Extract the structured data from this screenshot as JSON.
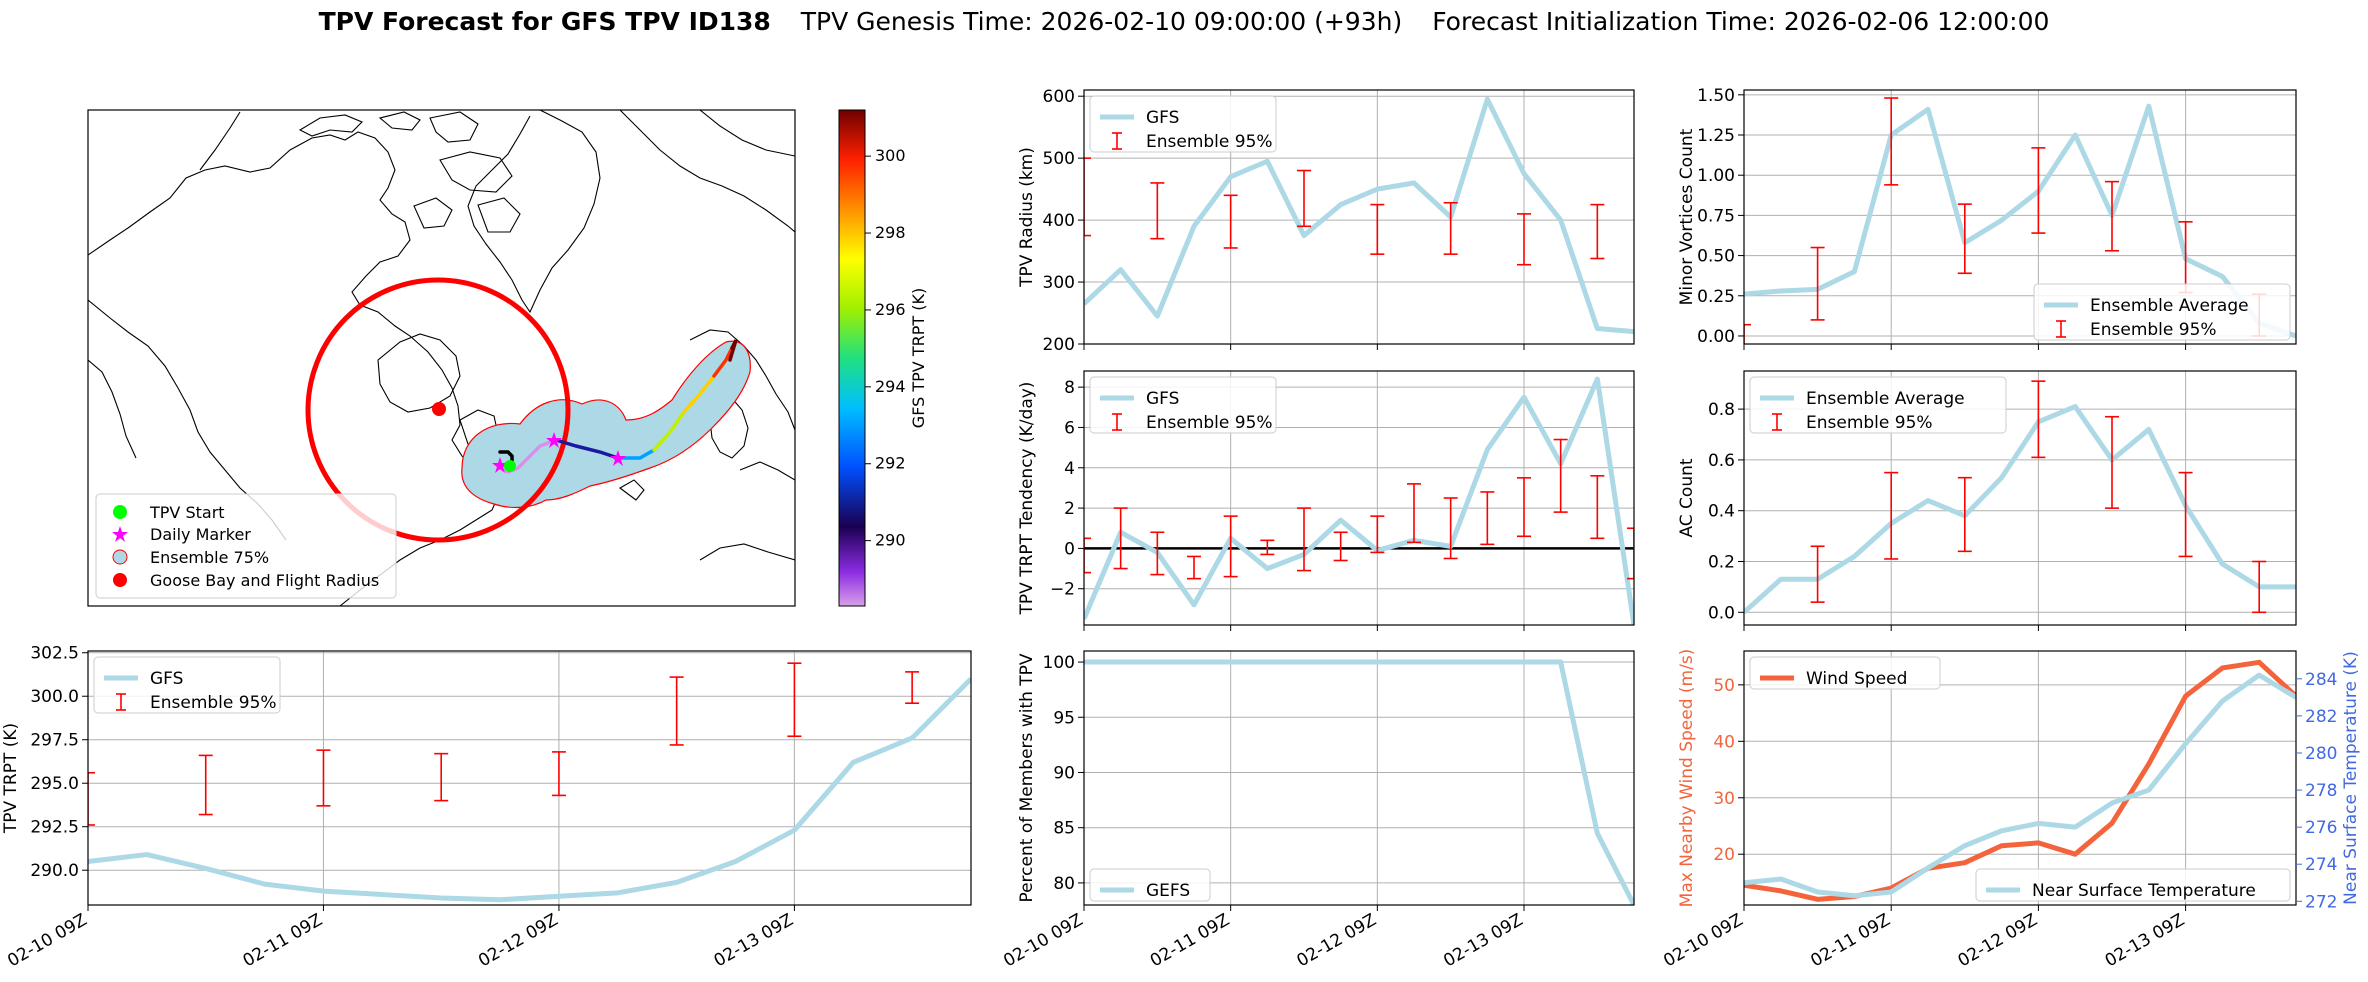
{
  "suptitle": {
    "bold": "TPV Forecast for GFS TPV ID138",
    "genesis": "TPV Genesis Time: 2026-02-10 09:00:00 (+93h)",
    "init": "Forecast Initialization Time: 2026-02-06 12:00:00"
  },
  "colors": {
    "track_gfs": "#add8e6",
    "errorbar": "#ff0000",
    "wind": "#f4643c",
    "temp_axis": "#4169e1",
    "ensemble_fill": "#add8e6",
    "marker_start": "#00ff00",
    "marker_daily": "#ff00ff",
    "marker_goose": "#ff0000"
  },
  "map": {
    "legend": [
      "TPV Start",
      "Daily Marker",
      "Ensemble 75%",
      "Goose Bay and Flight Radius"
    ],
    "colorbar": {
      "label": "GFS TPV TRPT (K)",
      "ticks": [
        "290",
        "292",
        "294",
        "296",
        "298",
        "300"
      ],
      "range": [
        288.3,
        301.2
      ]
    }
  },
  "chart_data": [
    {
      "id": "radius",
      "type": "line",
      "x": [
        0,
        1,
        2,
        3,
        4,
        5,
        6,
        7,
        8,
        9,
        10,
        11,
        12,
        13,
        14,
        15
      ],
      "ylabel": "TPV Radius (km)",
      "ylim": [
        200,
        610
      ],
      "yticks": [
        200,
        300,
        400,
        500,
        600
      ],
      "legend_pos": "top-left",
      "legend": [
        "GFS",
        "Ensemble 95%"
      ],
      "series": [
        {
          "name": "GFS",
          "values": [
            265,
            320,
            245,
            390,
            470,
            495,
            375,
            425,
            450,
            460,
            405,
            595,
            475,
            400,
            225,
            220
          ]
        }
      ],
      "errorbars": [
        {
          "x": 0,
          "lo": 375,
          "hi": 500
        },
        {
          "x": 2,
          "lo": 370,
          "hi": 460
        },
        {
          "x": 4,
          "lo": 355,
          "hi": 440
        },
        {
          "x": 6,
          "lo": 390,
          "hi": 480
        },
        {
          "x": 8,
          "lo": 345,
          "hi": 425
        },
        {
          "x": 10,
          "lo": 345,
          "hi": 428
        },
        {
          "x": 12,
          "lo": 328,
          "hi": 410
        },
        {
          "x": 14,
          "lo": 338,
          "hi": 425
        }
      ]
    },
    {
      "id": "minor",
      "type": "line",
      "x": [
        0,
        1,
        2,
        3,
        4,
        5,
        6,
        7,
        8,
        9,
        10,
        11,
        12,
        13,
        14,
        15
      ],
      "ylabel": "Minor Vortices Count",
      "ylim": [
        -0.05,
        1.53
      ],
      "yticks": [
        0,
        0.25,
        0.5,
        0.75,
        1.0,
        1.25,
        1.5
      ],
      "ytick_labels": [
        "0.00",
        "0.25",
        "0.50",
        "0.75",
        "1.00",
        "1.25",
        "1.50"
      ],
      "legend_pos": "bottom-right",
      "legend": [
        "Ensemble Average",
        "Ensemble 95%"
      ],
      "series": [
        {
          "name": "Ensemble Average",
          "values": [
            0.26,
            0.28,
            0.29,
            0.4,
            1.25,
            1.41,
            0.58,
            0.72,
            0.9,
            1.25,
            0.75,
            1.43,
            0.48,
            0.37,
            0.08,
            0.0
          ]
        }
      ],
      "errorbars": [
        {
          "x": 0,
          "lo": -0.1,
          "hi": 0.07
        },
        {
          "x": 2,
          "lo": 0.1,
          "hi": 0.55
        },
        {
          "x": 4,
          "lo": 0.94,
          "hi": 1.48
        },
        {
          "x": 6,
          "lo": 0.39,
          "hi": 0.82
        },
        {
          "x": 8,
          "lo": 0.64,
          "hi": 1.17
        },
        {
          "x": 10,
          "lo": 0.53,
          "hi": 0.96
        },
        {
          "x": 12,
          "lo": 0.27,
          "hi": 0.71
        },
        {
          "x": 14,
          "lo": 0.0,
          "hi": 0.26
        }
      ]
    },
    {
      "id": "tendency",
      "type": "line",
      "x": [
        0,
        1,
        2,
        3,
        4,
        5,
        6,
        7,
        8,
        9,
        10,
        11,
        12,
        13,
        14,
        15
      ],
      "ylabel": "TPV TRPT Tendency (K/day)",
      "ylim": [
        -3.8,
        8.8
      ],
      "yticks": [
        -2,
        0,
        2,
        4,
        6,
        8
      ],
      "ytick_labels": [
        "−2",
        "0",
        "2",
        "4",
        "6",
        "8"
      ],
      "zero_line": true,
      "legend_pos": "top-left",
      "legend": [
        "GFS",
        "Ensemble 95%"
      ],
      "series": [
        {
          "name": "GFS",
          "values": [
            -3.5,
            0.8,
            -0.2,
            -2.8,
            0.5,
            -1.0,
            -0.3,
            1.4,
            -0.1,
            0.4,
            0.1,
            4.9,
            7.5,
            4.2,
            8.4,
            -3.8
          ]
        }
      ],
      "errorbars": [
        {
          "x": 0,
          "lo": -1.2,
          "hi": 0.5
        },
        {
          "x": 1,
          "lo": -1.0,
          "hi": 2.0
        },
        {
          "x": 2,
          "lo": -1.3,
          "hi": 0.8
        },
        {
          "x": 3,
          "lo": -1.5,
          "hi": -0.4
        },
        {
          "x": 4,
          "lo": -1.4,
          "hi": 1.6
        },
        {
          "x": 5,
          "lo": -0.3,
          "hi": 0.4
        },
        {
          "x": 6,
          "lo": -1.1,
          "hi": 2.0
        },
        {
          "x": 7,
          "lo": -0.6,
          "hi": 0.8
        },
        {
          "x": 8,
          "lo": -0.2,
          "hi": 1.6
        },
        {
          "x": 9,
          "lo": 0.3,
          "hi": 3.2
        },
        {
          "x": 10,
          "lo": -0.5,
          "hi": 2.5
        },
        {
          "x": 11,
          "lo": 0.2,
          "hi": 2.8
        },
        {
          "x": 12,
          "lo": 0.6,
          "hi": 3.5
        },
        {
          "x": 13,
          "lo": 1.8,
          "hi": 5.4
        },
        {
          "x": 14,
          "lo": 0.5,
          "hi": 3.6
        },
        {
          "x": 15,
          "lo": -1.5,
          "hi": 1.0
        }
      ]
    },
    {
      "id": "ac",
      "type": "line",
      "x": [
        0,
        1,
        2,
        3,
        4,
        5,
        6,
        7,
        8,
        9,
        10,
        11,
        12,
        13,
        14,
        15
      ],
      "ylabel": "AC Count",
      "ylim": [
        -0.05,
        0.95
      ],
      "yticks": [
        0,
        0.2,
        0.4,
        0.6,
        0.8
      ],
      "ytick_labels": [
        "0.0",
        "0.2",
        "0.4",
        "0.6",
        "0.8"
      ],
      "legend_pos": "top-left",
      "legend": [
        "Ensemble Average",
        "Ensemble 95%"
      ],
      "series": [
        {
          "name": "Ensemble Average",
          "values": [
            0.0,
            0.13,
            0.13,
            0.22,
            0.35,
            0.44,
            0.38,
            0.53,
            0.75,
            0.81,
            0.6,
            0.72,
            0.42,
            0.19,
            0.1,
            0.1
          ]
        }
      ],
      "errorbars": [
        {
          "x": 2,
          "lo": 0.04,
          "hi": 0.26
        },
        {
          "x": 4,
          "lo": 0.21,
          "hi": 0.55
        },
        {
          "x": 6,
          "lo": 0.24,
          "hi": 0.53
        },
        {
          "x": 8,
          "lo": 0.61,
          "hi": 0.91
        },
        {
          "x": 10,
          "lo": 0.41,
          "hi": 0.77
        },
        {
          "x": 12,
          "lo": 0.22,
          "hi": 0.55
        },
        {
          "x": 14,
          "lo": 0.0,
          "hi": 0.2
        }
      ]
    },
    {
      "id": "trpt",
      "type": "line",
      "x": [
        0,
        1,
        2,
        3,
        4,
        5,
        6,
        7,
        8,
        9,
        10,
        11,
        12,
        13,
        14,
        15
      ],
      "ylabel": "TPV TRPT (K)",
      "ylim": [
        288.0,
        302.6
      ],
      "yticks": [
        290,
        292.5,
        295,
        297.5,
        300,
        302.5
      ],
      "ytick_labels": [
        "290.0",
        "292.5",
        "295.0",
        "297.5",
        "300.0",
        "302.5"
      ],
      "xticks": [
        "02-10 09Z",
        "02-11 09Z",
        "02-12 09Z",
        "02-13 09Z"
      ],
      "legend_pos": "top-left",
      "legend": [
        "GFS",
        "Ensemble 95%"
      ],
      "series": [
        {
          "name": "GFS",
          "values": [
            290.5,
            290.9,
            290.1,
            289.2,
            288.8,
            288.6,
            288.4,
            288.3,
            288.5,
            288.7,
            289.3,
            290.5,
            292.3,
            296.2,
            297.6,
            301.0
          ]
        }
      ],
      "errorbars": [
        {
          "x": 0,
          "lo": 292.6,
          "hi": 295.6
        },
        {
          "x": 2,
          "lo": 293.2,
          "hi": 296.6
        },
        {
          "x": 4,
          "lo": 293.7,
          "hi": 296.9
        },
        {
          "x": 6,
          "lo": 294.0,
          "hi": 296.7
        },
        {
          "x": 8,
          "lo": 294.3,
          "hi": 296.8
        },
        {
          "x": 10,
          "lo": 297.2,
          "hi": 301.1
        },
        {
          "x": 12,
          "lo": 297.7,
          "hi": 301.9
        },
        {
          "x": 14,
          "lo": 299.6,
          "hi": 301.4
        }
      ]
    },
    {
      "id": "members",
      "type": "line",
      "x": [
        0,
        1,
        2,
        3,
        4,
        5,
        6,
        7,
        8,
        9,
        10,
        11,
        12,
        13,
        14,
        15
      ],
      "ylabel": "Percent of Members with TPV",
      "ylim": [
        78,
        101
      ],
      "yticks": [
        80,
        85,
        90,
        95,
        100
      ],
      "xticks": [
        "02-10 09Z",
        "02-11 09Z",
        "02-12 09Z",
        "02-13 09Z"
      ],
      "legend_pos": "bottom-left",
      "legend": [
        "GEFS"
      ],
      "series": [
        {
          "name": "GEFS",
          "values": [
            100,
            100,
            100,
            100,
            100,
            100,
            100,
            100,
            100,
            100,
            100,
            100,
            100,
            100,
            84.5,
            78
          ]
        }
      ]
    },
    {
      "id": "wind",
      "type": "line",
      "x": [
        0,
        1,
        2,
        3,
        4,
        5,
        6,
        7,
        8,
        9,
        10,
        11,
        12,
        13,
        14,
        15
      ],
      "ylabel": "Max Nearby Wind Speed (m/s)",
      "ylim": [
        11,
        56
      ],
      "yticks": [
        20,
        30,
        40,
        50
      ],
      "y2label": "Near Surface Temperature (K)",
      "y2lim": [
        271.8,
        285.5
      ],
      "y2ticks": [
        272,
        274,
        276,
        278,
        280,
        282,
        284
      ],
      "xticks": [
        "02-10 09Z",
        "02-11 09Z",
        "02-12 09Z",
        "02-13 09Z"
      ],
      "legend": [
        "Wind Speed",
        "Near Surface Temperature"
      ],
      "legend_pos": "top-left / bottom-right",
      "series": [
        {
          "name": "Wind Speed",
          "axis": "left",
          "values": [
            14.5,
            13.5,
            12.0,
            12.5,
            14.0,
            17.5,
            18.5,
            21.5,
            22.0,
            20.0,
            25.5,
            36.0,
            48.0,
            53.0,
            54.0,
            48.0
          ]
        },
        {
          "name": "Near Surface Temperature",
          "axis": "right",
          "values": [
            273.0,
            273.2,
            272.5,
            272.3,
            272.5,
            273.8,
            275.0,
            275.8,
            276.2,
            276.0,
            277.3,
            278.0,
            280.5,
            282.8,
            284.2,
            283.0
          ]
        }
      ]
    }
  ]
}
